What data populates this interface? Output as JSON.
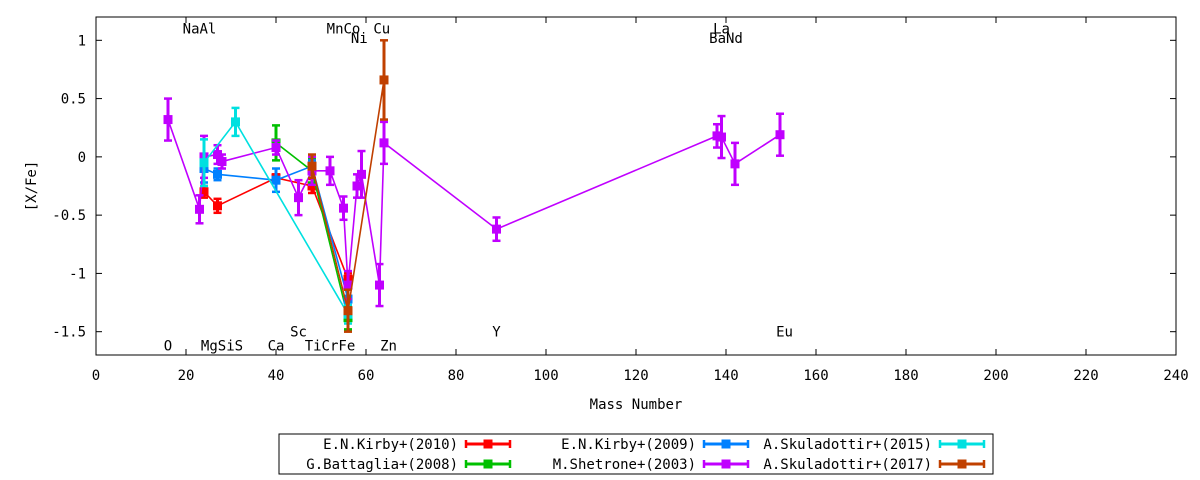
{
  "chart_data": {
    "type": "scatter",
    "xlabel": "Mass Number",
    "ylabel": "[X/Fe]",
    "xlim": [
      0,
      240
    ],
    "ylim": [
      -1.7,
      1.2
    ],
    "xticks": [
      0,
      20,
      40,
      60,
      80,
      100,
      120,
      140,
      160,
      180,
      200,
      220,
      240
    ],
    "yticks": [
      -1.5,
      -1,
      -0.5,
      0,
      0.5,
      1
    ],
    "ytick_labels": [
      "-1.5",
      "-1",
      "-0.5",
      "0",
      "0.5",
      "1"
    ],
    "grid": false,
    "legend_position": "bottom-center",
    "element_labels": [
      {
        "text": "NaAl",
        "x": 23,
        "y": 1.1
      },
      {
        "text": "MnCo",
        "x": 55,
        "y": 1.1
      },
      {
        "text": "Cu",
        "x": 63.5,
        "y": 1.1
      },
      {
        "text": "Ni",
        "x": 58.5,
        "y": 1.02
      },
      {
        "text": "La",
        "x": 139,
        "y": 1.1
      },
      {
        "text": "BaNd",
        "x": 140,
        "y": 1.02
      },
      {
        "text": "Sc",
        "x": 45,
        "y": -1.5
      },
      {
        "text": "Y",
        "x": 89,
        "y": -1.5
      },
      {
        "text": "Eu",
        "x": 153,
        "y": -1.5
      },
      {
        "text": "O",
        "x": 16,
        "y": -1.62
      },
      {
        "text": "MgSiS",
        "x": 28,
        "y": -1.62
      },
      {
        "text": "Ca",
        "x": 40,
        "y": -1.62
      },
      {
        "text": "TiCrFe",
        "x": 52,
        "y": -1.62
      },
      {
        "text": "Zn",
        "x": 65,
        "y": -1.62
      }
    ],
    "series": [
      {
        "name": "E.N.Kirby+(2010)",
        "color": "#ff0000",
        "points": [
          {
            "x": 24,
            "y": -0.3,
            "err": 0.05
          },
          {
            "x": 27,
            "y": -0.42,
            "err": 0.06
          },
          {
            "x": 40,
            "y": -0.18,
            "err": 0.03
          },
          {
            "x": 48,
            "y": -0.25,
            "err": 0.06
          },
          {
            "x": 56,
            "y": -1.05,
            "err": 0.05
          }
        ]
      },
      {
        "name": "G.Battaglia+(2008)",
        "color": "#00c000",
        "points": [
          {
            "x": 40,
            "y": 0.12,
            "err": 0.15
          },
          {
            "x": 48,
            "y": -0.12,
            "err": 0.1
          },
          {
            "x": 56,
            "y": -1.38,
            "err": 0.1
          }
        ]
      },
      {
        "name": "E.N.Kirby+(2009)",
        "color": "#0080ff",
        "points": [
          {
            "x": 24,
            "y": -0.1,
            "err": 0.12
          },
          {
            "x": 27,
            "y": -0.15,
            "err": 0.05
          },
          {
            "x": 40,
            "y": -0.2,
            "err": 0.1
          },
          {
            "x": 48,
            "y": -0.08,
            "err": 0.05
          },
          {
            "x": 56,
            "y": -1.22,
            "err": 0.1
          }
        ]
      },
      {
        "name": "M.Shetrone+(2003)",
        "color": "#c000ff",
        "points": [
          {
            "x": 16,
            "y": 0.32,
            "err": 0.18
          },
          {
            "x": 23,
            "y": -0.45,
            "err": 0.12
          },
          {
            "x": 24,
            "y": 0.0,
            "err": 0.18
          },
          {
            "x": 27,
            "y": 0.02,
            "err": 0.08
          },
          {
            "x": 28,
            "y": -0.04,
            "err": 0.06
          },
          {
            "x": 40,
            "y": 0.08,
            "err": 0.06
          },
          {
            "x": 45,
            "y": -0.35,
            "err": 0.15
          },
          {
            "x": 48,
            "y": -0.12,
            "err": 0.12
          },
          {
            "x": 52,
            "y": -0.12,
            "err": 0.12
          },
          {
            "x": 55,
            "y": -0.44,
            "err": 0.1
          },
          {
            "x": 56,
            "y": -1.1,
            "err": 0.12
          },
          {
            "x": 58,
            "y": -0.25,
            "err": 0.1
          },
          {
            "x": 59,
            "y": -0.15,
            "err": 0.2
          },
          {
            "x": 63,
            "y": -1.1,
            "err": 0.18
          },
          {
            "x": 64,
            "y": 0.12,
            "err": 0.18
          },
          {
            "x": 89,
            "y": -0.62,
            "err": 0.1
          },
          {
            "x": 138,
            "y": 0.18,
            "err": 0.1
          },
          {
            "x": 139,
            "y": 0.17,
            "err": 0.18
          },
          {
            "x": 142,
            "y": -0.06,
            "err": 0.18
          },
          {
            "x": 152,
            "y": 0.19,
            "err": 0.18
          }
        ]
      },
      {
        "name": "A.Skuladottir+(2015)",
        "color": "#00e0e0",
        "points": [
          {
            "x": 24,
            "y": -0.05,
            "err": 0.2
          },
          {
            "x": 31,
            "y": 0.3,
            "err": 0.12
          },
          {
            "x": 56,
            "y": -1.35,
            "err": 0.08
          }
        ]
      },
      {
        "name": "A.Skuladottir+(2017)",
        "color": "#c04000",
        "points": [
          {
            "x": 48,
            "y": -0.08,
            "err": 0.1
          },
          {
            "x": 56,
            "y": -1.32,
            "err": 0.18
          },
          {
            "x": 64,
            "y": 0.66,
            "err": 0.34
          }
        ]
      }
    ],
    "legend": {
      "columns": [
        [
          "E.N.Kirby+(2010)",
          "G.Battaglia+(2008)"
        ],
        [
          "E.N.Kirby+(2009)",
          "M.Shetrone+(2003)"
        ],
        [
          "A.Skuladottir+(2015)",
          "A.Skuladottir+(2017)"
        ]
      ]
    }
  }
}
